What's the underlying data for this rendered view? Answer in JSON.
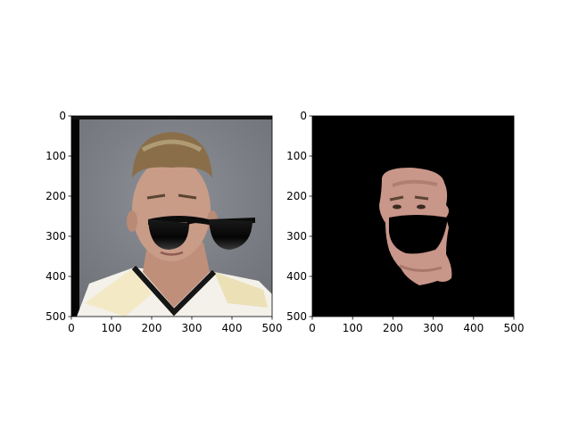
{
  "chart_data": [
    {
      "type": "image",
      "panel": "left",
      "image_content": "face-photo-with-sunglasses-overlay",
      "xlim": [
        0,
        500
      ],
      "ylim": [
        500,
        0
      ],
      "xticks": [
        0,
        100,
        200,
        300,
        400,
        500
      ],
      "yticks": [
        0,
        100,
        200,
        300,
        400,
        500
      ],
      "colors": {
        "background": "#7c7f85",
        "skin": "#c79a86",
        "hair": "#8a6e4a",
        "shirt": "#f3f1ea",
        "sunglasses": "#0b0b0b"
      }
    },
    {
      "type": "image",
      "panel": "right",
      "image_content": "masked-face-skin-region-with-black-glasses-hole",
      "xlim": [
        0,
        500
      ],
      "ylim": [
        500,
        0
      ],
      "xticks": [
        0,
        100,
        200,
        300,
        400,
        500
      ],
      "yticks": [
        0,
        100,
        200,
        300,
        400,
        500
      ],
      "colors": {
        "background": "#000000",
        "skin": "#c9968a"
      }
    }
  ]
}
